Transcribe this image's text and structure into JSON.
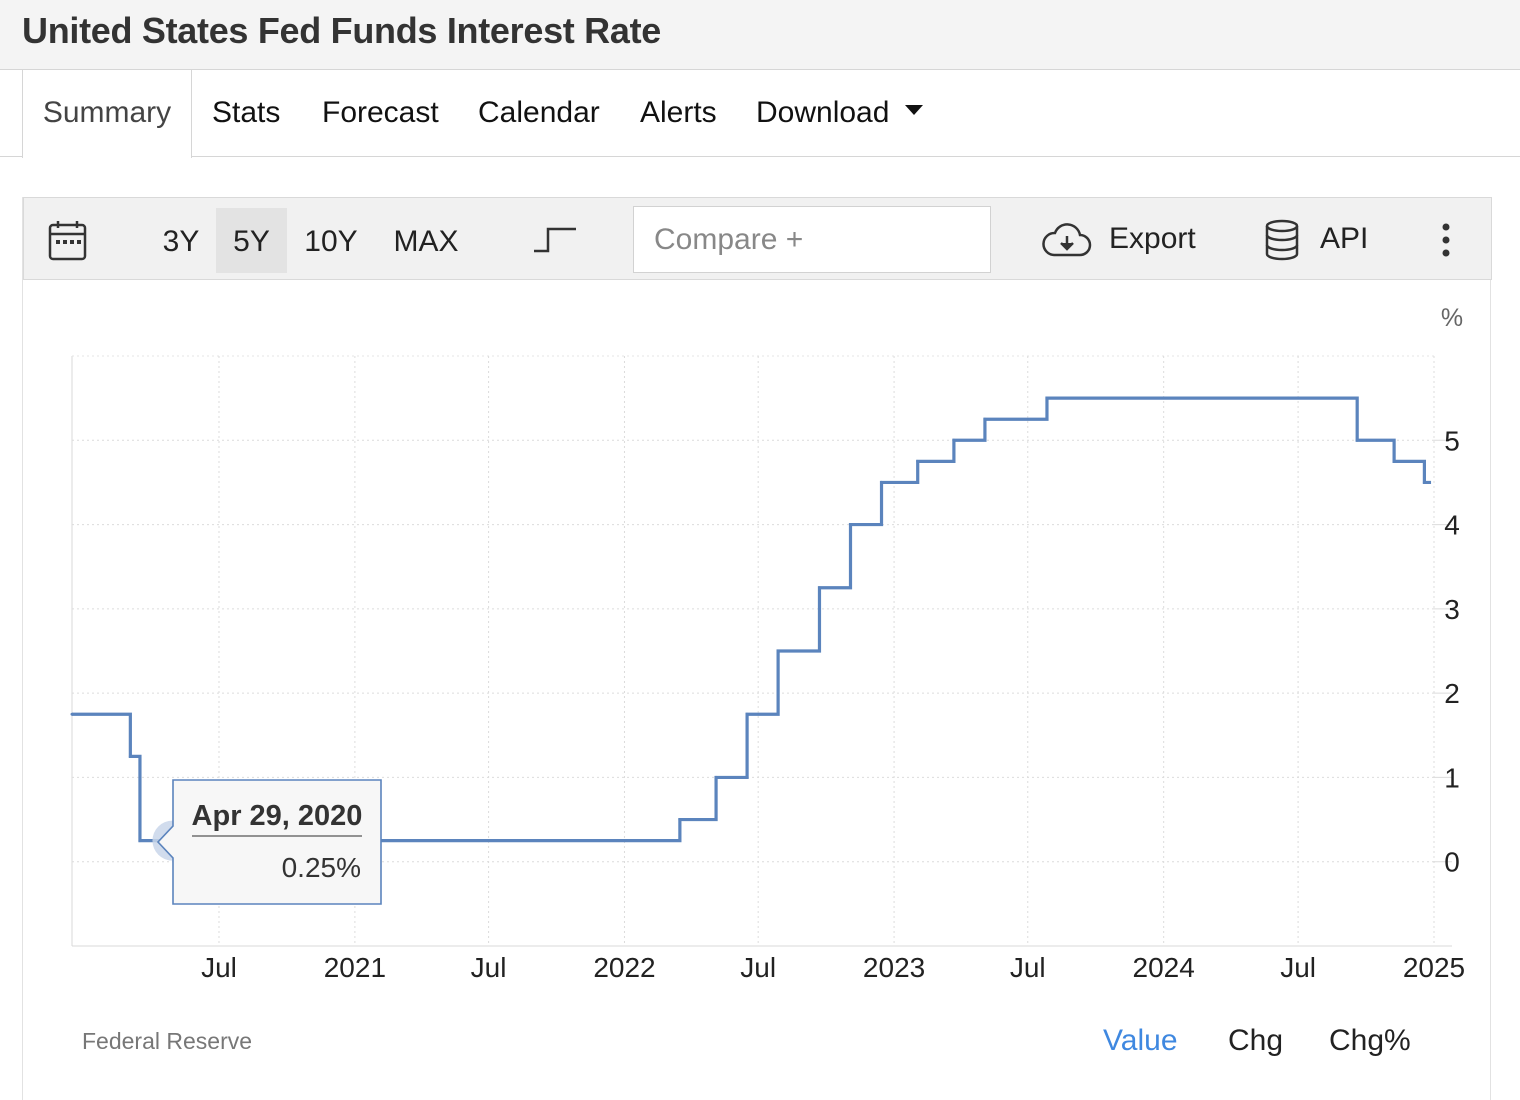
{
  "page_title": "United States Fed Funds Interest Rate",
  "tabs": [
    {
      "label": "Summary",
      "active": true
    },
    {
      "label": "Stats"
    },
    {
      "label": "Forecast"
    },
    {
      "label": "Calendar"
    },
    {
      "label": "Alerts"
    },
    {
      "label": "Download"
    }
  ],
  "toolbar": {
    "ranges": [
      "3Y",
      "5Y",
      "10Y",
      "MAX"
    ],
    "active_range": "5Y",
    "compare_placeholder": "Compare +",
    "export_label": "Export",
    "api_label": "API",
    "icons": [
      "calendar-icon",
      "step-line-icon",
      "cloud-download-icon",
      "database-icon",
      "more-vert-icon"
    ]
  },
  "tooltip": {
    "date": "Apr 29, 2020",
    "value": "0.25%"
  },
  "source": "Federal Reserve",
  "modes": [
    {
      "label": "Value",
      "active": true
    },
    {
      "label": "Chg"
    },
    {
      "label": "Chg%"
    }
  ],
  "colors": {
    "line": "#5b84bd",
    "accent": "#3f88e0",
    "marker": "#c9d6ea"
  },
  "chart_data": {
    "type": "line",
    "step": true,
    "series": [
      {
        "values": [
          {
            "x": "2019-12-15",
            "y": 1.75
          },
          {
            "x": "2020-03-03",
            "y": 1.25
          },
          {
            "x": "2020-03-16",
            "y": 0.25
          },
          {
            "x": "2022-03-17",
            "y": 0.5
          },
          {
            "x": "2022-05-05",
            "y": 1.0
          },
          {
            "x": "2022-06-16",
            "y": 1.75
          },
          {
            "x": "2022-07-28",
            "y": 2.5
          },
          {
            "x": "2022-09-22",
            "y": 3.25
          },
          {
            "x": "2022-11-03",
            "y": 4.0
          },
          {
            "x": "2022-12-15",
            "y": 4.5
          },
          {
            "x": "2023-02-02",
            "y": 4.75
          },
          {
            "x": "2023-03-23",
            "y": 5.0
          },
          {
            "x": "2023-05-04",
            "y": 5.25
          },
          {
            "x": "2023-07-27",
            "y": 5.5
          },
          {
            "x": "2024-09-19",
            "y": 5.0
          },
          {
            "x": "2024-11-08",
            "y": 4.75
          },
          {
            "x": "2024-12-19",
            "y": 4.5
          }
        ]
      }
    ],
    "x_ticks": [
      {
        "date": "2020-07-01",
        "label": "Jul"
      },
      {
        "date": "2021-01-01",
        "label": "2021"
      },
      {
        "date": "2021-07-01",
        "label": "Jul"
      },
      {
        "date": "2022-01-01",
        "label": "2022"
      },
      {
        "date": "2022-07-01",
        "label": "Jul"
      },
      {
        "date": "2023-01-01",
        "label": "2023"
      },
      {
        "date": "2023-07-01",
        "label": "Jul"
      },
      {
        "date": "2024-01-01",
        "label": "2024"
      },
      {
        "date": "2024-07-01",
        "label": "Jul"
      },
      {
        "date": "2025-01-01",
        "label": "2025"
      }
    ],
    "y_ticks": [
      0,
      1,
      2,
      3,
      4,
      5
    ],
    "ylim": [
      -1,
      6
    ],
    "xlim": [
      "2019-12-15",
      "2025-01-01"
    ],
    "ylabel": "%",
    "y_axis_position": "right",
    "grid": true,
    "highlight": {
      "x": "2020-04-29",
      "y": 0.25
    }
  }
}
